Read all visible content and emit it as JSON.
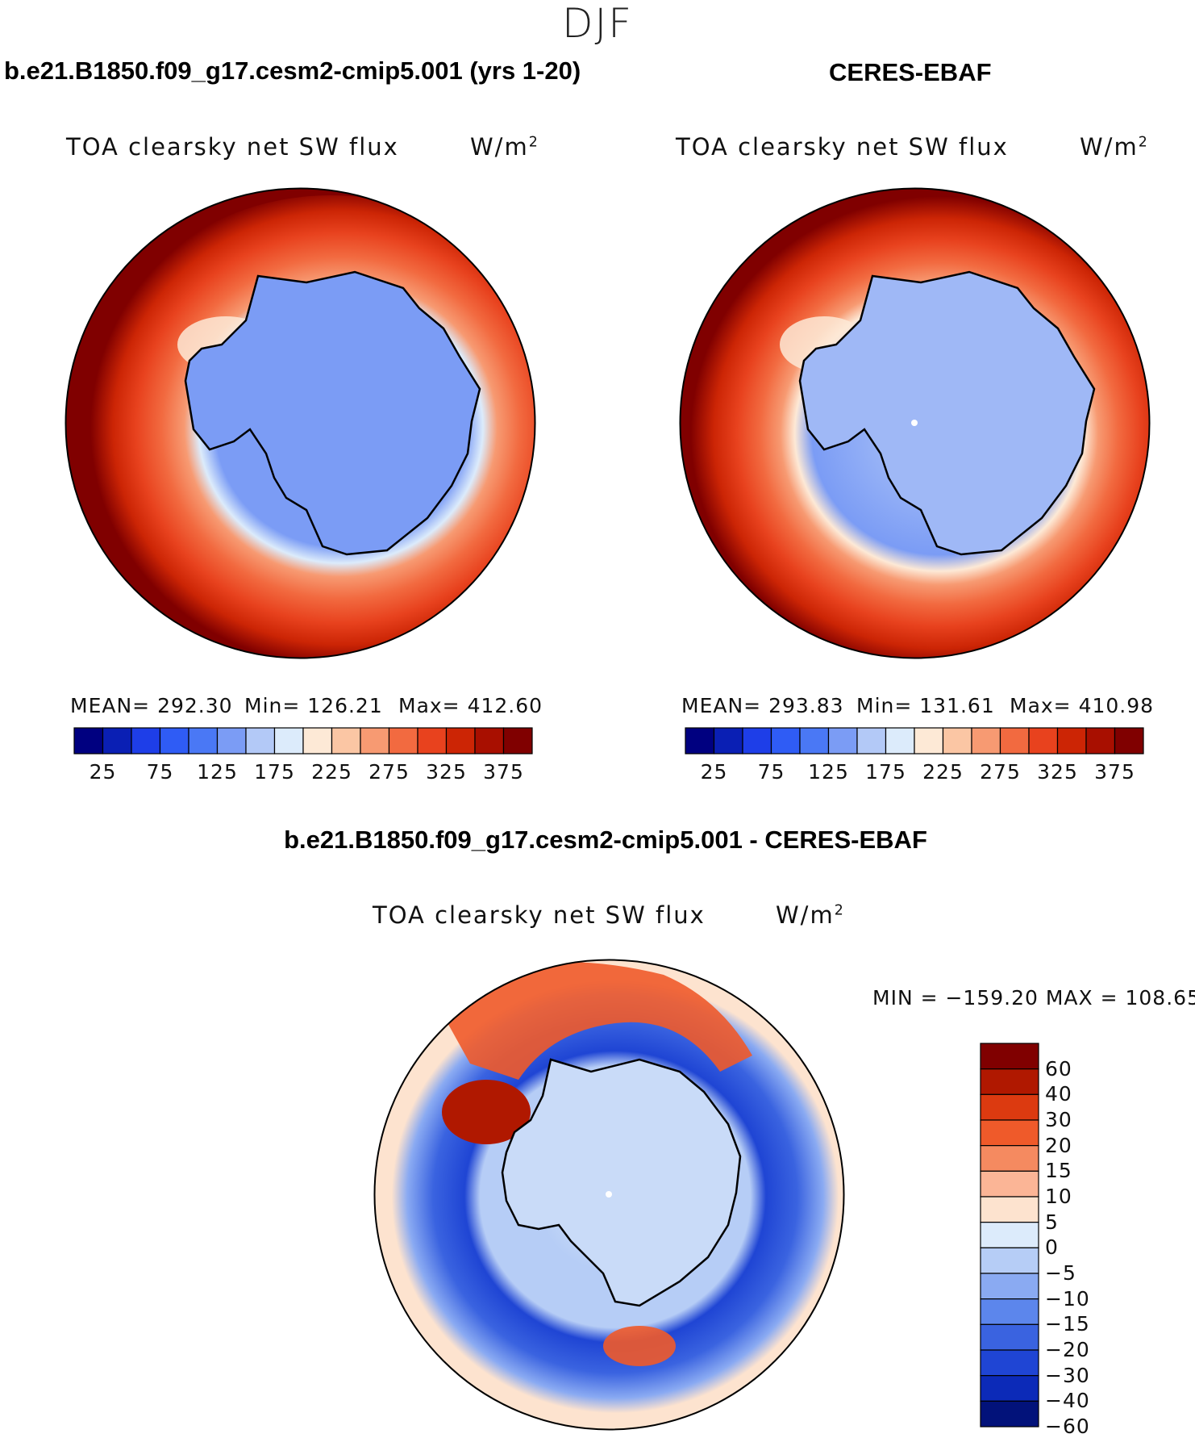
{
  "figure": {
    "season": "DJF"
  },
  "panels": [
    {
      "id": "model",
      "case_title": "b.e21.B1850.f09_g17.cesm2-cmip5.001 (yrs 1-20)",
      "var_title": "TOA clearsky net SW flux",
      "units": "W/m",
      "units_sup": "2",
      "stats": {
        "mean": "MEAN= 292.30",
        "min": "Min= 126.21",
        "max": "Max= 412.60"
      }
    },
    {
      "id": "obs",
      "case_title": "CERES-EBAF",
      "var_title": "TOA clearsky net SW flux",
      "units": "W/m",
      "units_sup": "2",
      "stats": {
        "mean": "MEAN= 293.83",
        "min": "Min= 131.61",
        "max": "Max= 410.98"
      }
    }
  ],
  "diff_panel": {
    "case_title": "b.e21.B1850.f09_g17.cesm2-cmip5.001 - CERES-EBAF",
    "var_title": "TOA clearsky net SW flux",
    "units": "W/m",
    "units_sup": "2",
    "minmax": "MIN = −159.20 MAX = 108.65"
  },
  "abs_colorbar": {
    "colors": [
      "#000080",
      "#0a1fb4",
      "#1e3ee8",
      "#2f5cf5",
      "#4a78f5",
      "#7b9cf5",
      "#b3c9f7",
      "#dcebfb",
      "#fde9d6",
      "#fbc6a4",
      "#f79a72",
      "#f26a40",
      "#e8421e",
      "#cc2505",
      "#a80f00",
      "#800000"
    ],
    "tick_labels": [
      "25",
      "75",
      "125",
      "175",
      "225",
      "275",
      "325",
      "375"
    ]
  },
  "diff_colorbar": {
    "colors": [
      "#800000",
      "#b01800",
      "#dc3a10",
      "#ef5a2a",
      "#f58a60",
      "#fbb596",
      "#fde3cf",
      "#dcebfb",
      "#b6cdf6",
      "#8aaaf2",
      "#5c86ec",
      "#3a63e0",
      "#1f45d4",
      "#0c2ab8",
      "#02127a"
    ],
    "tick_labels": [
      "60",
      "40",
      "30",
      "20",
      "15",
      "10",
      "5",
      "0",
      "−5",
      "−10",
      "−15",
      "−20",
      "−30",
      "−40",
      "−60"
    ]
  }
}
